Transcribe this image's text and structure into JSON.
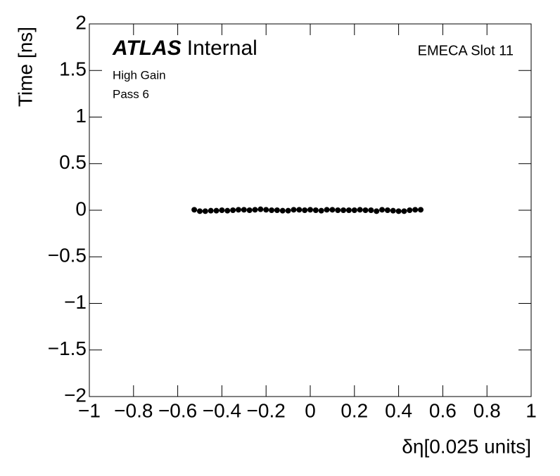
{
  "chart_data": {
    "type": "scatter",
    "title": "Internal",
    "brand": "ATLAS",
    "annotations": [
      "High Gain",
      "Pass 6",
      "EMECA Slot 11"
    ],
    "xlabel": "δη[0.025 units]",
    "ylabel": "Time [ns]",
    "color": "#000000",
    "x": [
      -0.525,
      -0.5,
      -0.475,
      -0.45,
      -0.425,
      -0.4,
      -0.375,
      -0.35,
      -0.325,
      -0.3,
      -0.275,
      -0.25,
      -0.225,
      -0.2,
      -0.175,
      -0.15,
      -0.125,
      -0.1,
      -0.075,
      -0.05,
      -0.025,
      0,
      0.025,
      0.05,
      0.075,
      0.1,
      0.125,
      0.15,
      0.175,
      0.2,
      0.225,
      0.25,
      0.275,
      0.3,
      0.325,
      0.35,
      0.375,
      0.4,
      0.425,
      0.45,
      0.475,
      0.5
    ],
    "values": [
      0.005,
      -0.01,
      -0.01,
      -0.005,
      -0.005,
      0,
      -0.005,
      0,
      0.005,
      0.005,
      0,
      0.005,
      0.01,
      0.005,
      0,
      0,
      -0.005,
      -0.005,
      0.005,
      0.005,
      0,
      0.005,
      0,
      -0.005,
      0.005,
      0.005,
      0,
      0,
      0,
      0,
      0.005,
      0,
      0,
      -0.01,
      0.005,
      0,
      -0.005,
      -0.01,
      -0.01,
      0,
      0.005,
      0.005
    ],
    "xlim": [
      -1,
      1
    ],
    "ylim": [
      -2,
      2
    ],
    "xticks": [
      {
        "value": -1,
        "label": "−1"
      },
      {
        "value": -0.8,
        "label": "−0.8"
      },
      {
        "value": -0.6,
        "label": "−0.6"
      },
      {
        "value": -0.4,
        "label": "−0.4"
      },
      {
        "value": -0.2,
        "label": "−0.2"
      },
      0,
      0.2,
      0.4,
      0.6,
      0.8,
      1
    ],
    "yticks": [
      {
        "value": -2,
        "label": "−2"
      },
      {
        "value": -1.5,
        "label": "−1.5"
      },
      {
        "value": -1,
        "label": "−1"
      },
      {
        "value": -0.5,
        "label": "−0.5"
      },
      0,
      0.5,
      1,
      1.5,
      2
    ]
  }
}
